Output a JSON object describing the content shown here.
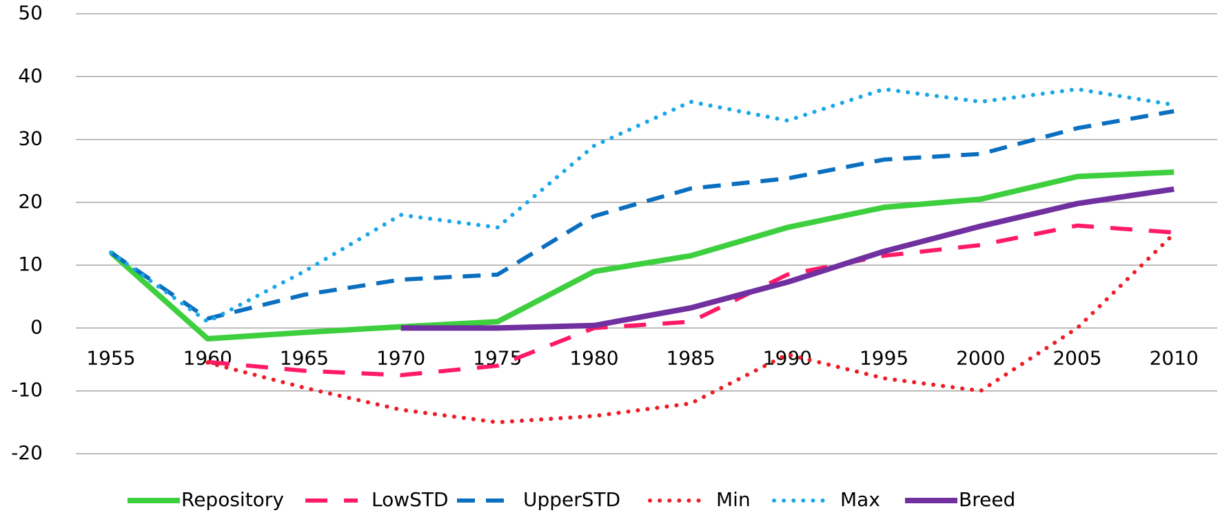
{
  "chart_data": {
    "type": "line",
    "categories": [
      "1955",
      "1960",
      "1965",
      "1970",
      "1975",
      "1980",
      "1985",
      "1990",
      "1995",
      "2000",
      "2005",
      "2010"
    ],
    "ylim": [
      -20,
      50
    ],
    "yticks": [
      -20,
      -10,
      0,
      10,
      20,
      30,
      40,
      50
    ],
    "grid": true,
    "legend": "bottom",
    "series": [
      {
        "name": "Repository",
        "color": "#3ecf3e",
        "style": "solid",
        "width": 8,
        "values": [
          12,
          -1.7,
          -0.7,
          0.2,
          1,
          9,
          11.5,
          16,
          19.2,
          20.5,
          24.1,
          24.8
        ]
      },
      {
        "name": "LowSTD",
        "color": "#ff1a66",
        "style": "longdash",
        "width": 6,
        "values": [
          null,
          -5.4,
          -6.8,
          -7.5,
          -6,
          0,
          1,
          8.5,
          11.5,
          13.2,
          16.3,
          15.2
        ]
      },
      {
        "name": "UpperSTD",
        "color": "#0b6fc0",
        "style": "dash",
        "width": 6,
        "values": [
          12,
          1.5,
          5.3,
          7.7,
          8.5,
          17.8,
          22.2,
          23.8,
          26.8,
          27.7,
          31.8,
          34.5
        ]
      },
      {
        "name": "Min",
        "color": "#ee1c25",
        "style": "dot",
        "width": 6,
        "values": [
          null,
          -5.5,
          -9.5,
          -13,
          -15,
          -14,
          -12,
          -4.2,
          -8,
          -10,
          0,
          15
        ]
      },
      {
        "name": "Max",
        "color": "#1aa7e8",
        "style": "dot",
        "width": 6,
        "values": [
          12,
          1,
          9,
          18,
          16,
          29,
          36,
          33,
          38,
          36,
          38,
          35.5
        ]
      },
      {
        "name": "Breed",
        "color": "#7030a0",
        "style": "solid",
        "width": 8,
        "values": [
          null,
          null,
          null,
          0,
          0,
          0.4,
          3.2,
          7.3,
          12.2,
          16.2,
          19.8,
          22.1
        ]
      }
    ]
  }
}
